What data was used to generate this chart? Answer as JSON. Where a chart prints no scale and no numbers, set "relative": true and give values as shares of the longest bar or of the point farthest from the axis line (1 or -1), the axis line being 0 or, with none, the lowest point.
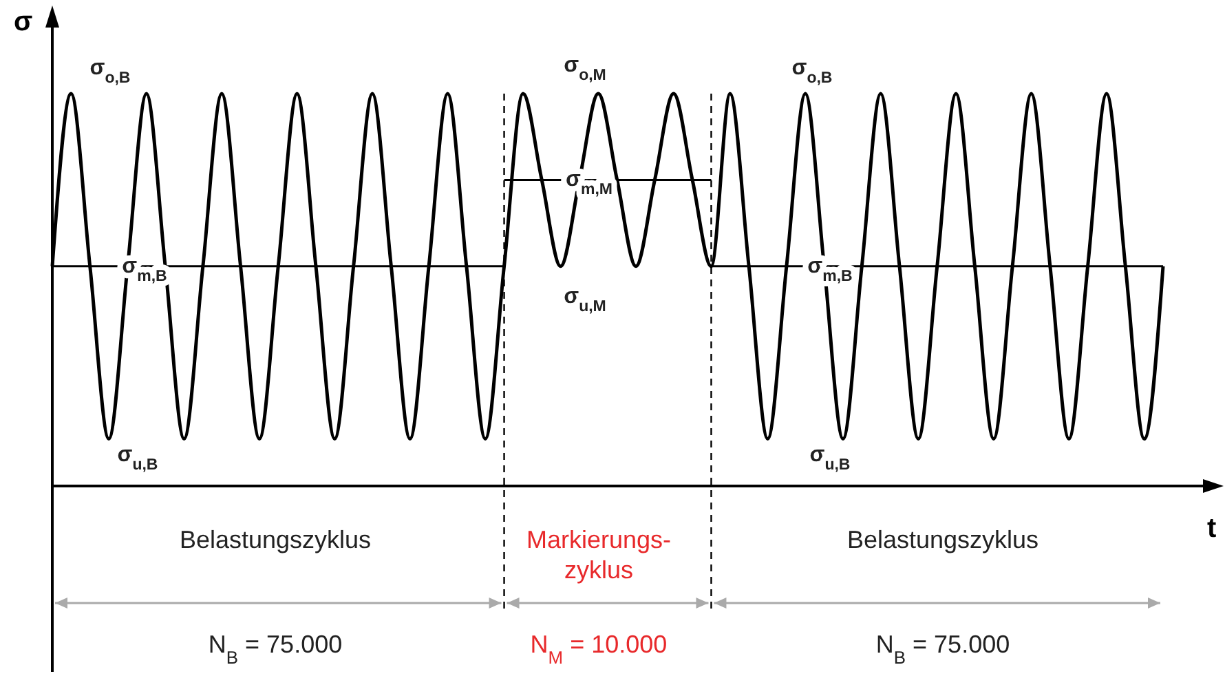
{
  "chart_data": {
    "type": "line",
    "relative": true,
    "ylabel": "σ",
    "xlabel": "t",
    "line_style": "solid",
    "categories": [
      null,
      null,
      null,
      null,
      null,
      null,
      null,
      null,
      null,
      null,
      null,
      null,
      null,
      null,
      null,
      null,
      null,
      null,
      null,
      null,
      null,
      null,
      null,
      null,
      null,
      null,
      null,
      null,
      null,
      null,
      null,
      null,
      null,
      null,
      null,
      null,
      null,
      null,
      null,
      null,
      null,
      null,
      null,
      null,
      null,
      null,
      null,
      null,
      null,
      null,
      null,
      null,
      null,
      null,
      null,
      null,
      null,
      null,
      null,
      null
    ],
    "series": [
      {
        "color": "#000000",
        "values": [
          0.56,
          1,
          0.56,
          0.12,
          0.56,
          1,
          0.56,
          0.12,
          0.56,
          1,
          0.56,
          0.12,
          0.56,
          1,
          0.56,
          0.12,
          0.56,
          1,
          0.56,
          0.12,
          0.56,
          1,
          0.56,
          0.12,
          0.56,
          1,
          0.78,
          0.56,
          0.78,
          1,
          0.78,
          0.56,
          0.78,
          1,
          0.78,
          0.56,
          1,
          0.56,
          0.12,
          0.56,
          1,
          0.56,
          0.12,
          0.56,
          1,
          0.56,
          0.12,
          0.56,
          1,
          0.56,
          0.12,
          0.56,
          1,
          0.56,
          0.12,
          0.56,
          1,
          0.56,
          0.12,
          0.56
        ]
      },
      {
        "color": "#000000",
        "values": [
          0.56,
          0.56,
          0.56,
          0.56,
          0.56,
          0.56,
          0.56,
          0.56,
          0.56,
          0.56,
          0.56,
          0.56,
          0.56,
          0.56,
          0.56,
          0.56,
          0.56,
          0.56,
          0.56,
          0.56,
          0.56,
          0.56,
          0.56,
          0.56,
          0.56,
          null,
          null,
          null,
          null,
          null,
          null,
          null,
          null,
          null,
          null,
          0.56,
          0.56,
          0.56,
          0.56,
          0.56,
          0.56,
          0.56,
          0.56,
          0.56,
          0.56,
          0.56,
          0.56,
          0.56,
          0.56,
          0.56,
          0.56,
          0.56,
          0.56,
          0.56,
          0.56,
          0.56,
          0.56,
          0.56,
          0.56,
          0.56
        ]
      },
      {
        "color": "#000000",
        "values": [
          null,
          null,
          null,
          null,
          null,
          null,
          null,
          null,
          null,
          null,
          null,
          null,
          null,
          null,
          null,
          null,
          null,
          null,
          null,
          null,
          null,
          null,
          null,
          null,
          0.78,
          0.78,
          0.78,
          0.78,
          0.78,
          0.78,
          0.78,
          0.78,
          0.78,
          0.78,
          0.78,
          0.78,
          null,
          null,
          null,
          null,
          null,
          null,
          null,
          null,
          null,
          null,
          null,
          null,
          null,
          null,
          null,
          null,
          null,
          null,
          null,
          null,
          null,
          null,
          null,
          null
        ]
      }
    ],
    "annotations": [
      "σ$_{o,B}$",
      "σ$_{m,B}$",
      "σ$_{u,B}$",
      "σ$_{o,M}$",
      "σ$_{m,M}$",
      "σ$_{u,M}$",
      "σ$_{o,B}$",
      "σ$_{m,B}$",
      "σ$_{u,B}$",
      "Belastungszyklus",
      "Markierungs-\nzyklus",
      "Belastungszyklus",
      "N$_{B}$ = 75.000",
      "N$_{M}$ = 10.000",
      "N$_{B}$ = 75.000"
    ]
  }
}
